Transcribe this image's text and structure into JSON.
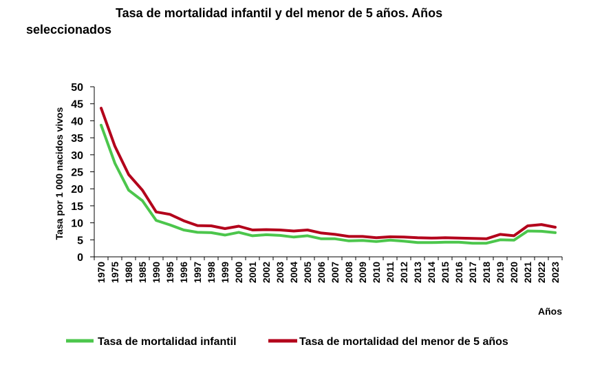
{
  "chart_data": {
    "type": "line",
    "title_line1": "Tasa de mortalidad infantil y del menor de 5 años. Años",
    "title_line2": "seleccionados",
    "xlabel": "Años",
    "ylabel": "Tasa por 1 000 nacidos vivos",
    "ylim": [
      0,
      50
    ],
    "yticks": [
      "0",
      "5",
      "10",
      "15",
      "20",
      "25",
      "30",
      "35",
      "40",
      "45",
      "50"
    ],
    "categories": [
      "1970",
      "1975",
      "1980",
      "1985",
      "1990",
      "1995",
      "1996",
      "1997",
      "1998",
      "1999",
      "2000",
      "2001",
      "2002",
      "2003",
      "2004",
      "2005",
      "2006",
      "2007",
      "2008",
      "2009",
      "2010",
      "2011",
      "2012",
      "2013",
      "2014",
      "2015",
      "2016",
      "2017",
      "2018",
      "2019",
      "2020",
      "2021",
      "2022",
      "2023"
    ],
    "series": [
      {
        "name": "Tasa de mortalidad infantil",
        "color": "#4cc64c",
        "values": [
          38.7,
          27.5,
          19.6,
          16.5,
          10.7,
          9.4,
          7.9,
          7.2,
          7.1,
          6.4,
          7.2,
          6.2,
          6.5,
          6.3,
          5.8,
          6.2,
          5.3,
          5.3,
          4.7,
          4.8,
          4.5,
          4.9,
          4.6,
          4.2,
          4.2,
          4.3,
          4.3,
          4.0,
          4.0,
          5.0,
          4.9,
          7.6,
          7.5,
          7.1
        ]
      },
      {
        "name": "Tasa de mortalidad del menor de 5 años",
        "color": "#b3001b",
        "values": [
          43.7,
          32.5,
          24.2,
          19.6,
          13.2,
          12.5,
          10.6,
          9.2,
          9.1,
          8.3,
          9.0,
          7.9,
          8.0,
          7.9,
          7.6,
          7.9,
          7.0,
          6.6,
          6.0,
          6.0,
          5.6,
          5.9,
          5.8,
          5.6,
          5.5,
          5.6,
          5.5,
          5.4,
          5.3,
          6.6,
          6.2,
          9.1,
          9.5,
          8.7
        ]
      }
    ],
    "legend": "bottom"
  }
}
